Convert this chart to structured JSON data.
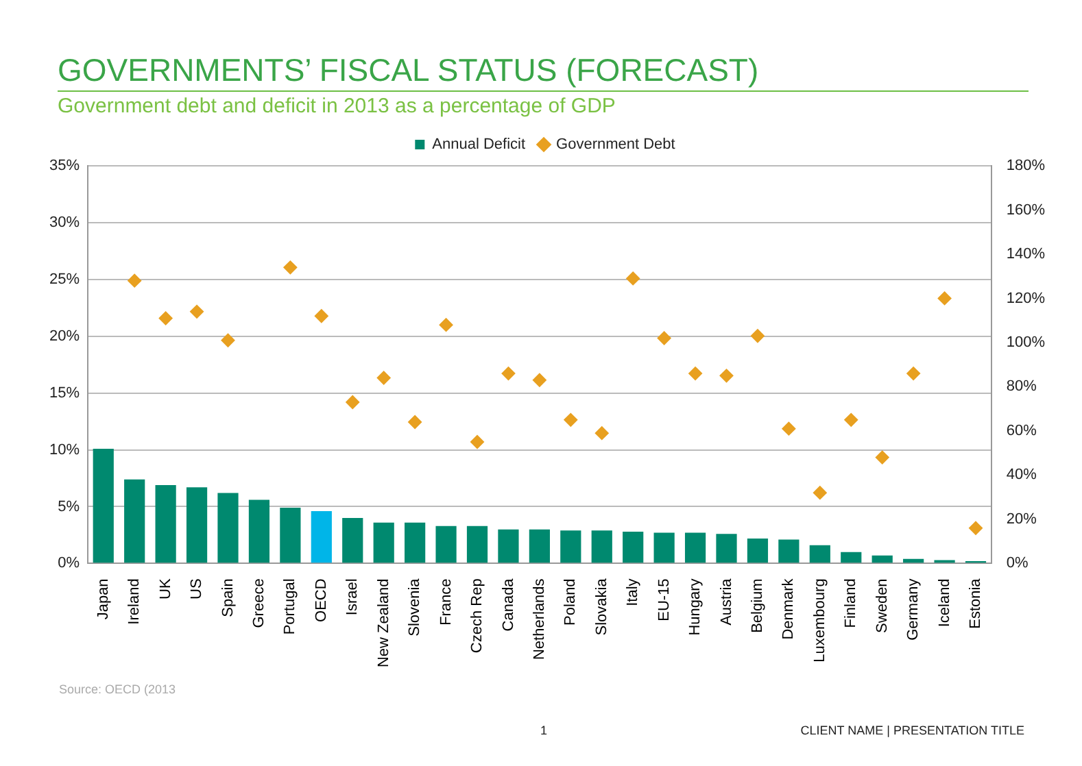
{
  "chart_data": {
    "type": "bar",
    "title": "GOVERNMENTS’ FISCAL STATUS (FORECAST)",
    "subtitle": "Government debt and deficit in 2013 as a percentage of GDP",
    "categories": [
      "Japan",
      "Ireland",
      "UK",
      "US",
      "Spain",
      "Greece",
      "Portugal",
      "OECD",
      "Israel",
      "New Zealand",
      "Slovenia",
      "France",
      "Czech Rep",
      "Canada",
      "Netherlands",
      "Poland",
      "Slovakia",
      "Italy",
      "EU-15",
      "Hungary",
      "Austria",
      "Belgium",
      "Denmark",
      "Luxembourg",
      "Finland",
      "Sweden",
      "Germany",
      "Iceland",
      "Estonia"
    ],
    "series": [
      {
        "name": "Annual Deficit",
        "color": "#00896f",
        "colors": [
          "#00896f",
          "#00896f",
          "#00896f",
          "#00896f",
          "#00896f",
          "#00896f",
          "#00896f",
          "#00b5e8",
          "#00896f",
          "#00896f",
          "#00896f",
          "#00896f",
          "#00896f",
          "#00896f",
          "#00896f",
          "#00896f",
          "#00896f",
          "#00896f",
          "#00896f",
          "#00896f",
          "#00896f",
          "#00896f",
          "#00896f",
          "#00896f",
          "#00896f",
          "#00896f",
          "#00896f",
          "#00896f",
          "#00896f"
        ],
        "values": [
          10.1,
          7.4,
          6.9,
          6.7,
          6.2,
          5.6,
          4.9,
          4.6,
          4.0,
          3.6,
          3.6,
          3.3,
          3.3,
          3.0,
          3.0,
          2.9,
          2.9,
          2.8,
          2.7,
          2.7,
          2.6,
          2.2,
          2.1,
          1.6,
          1.0,
          0.7,
          0.4,
          0.3,
          0.2
        ]
      },
      {
        "name": "Government Debt",
        "type": "scatter",
        "axis": "y2",
        "marker": "diamond",
        "color": "#e8a020",
        "values": [
          null,
          128,
          111,
          114,
          101,
          null,
          134,
          112,
          73,
          84,
          64,
          108,
          55,
          86,
          83,
          65,
          59,
          129,
          102,
          86,
          85,
          103,
          61,
          32,
          65,
          48,
          86,
          120,
          16
        ]
      }
    ],
    "ylim": [
      0,
      35
    ],
    "yticks": [
      {
        "value": 0,
        "label": "0%"
      },
      {
        "value": 5,
        "label": "5%"
      },
      {
        "value": 10,
        "label": "10%"
      },
      {
        "value": 15,
        "label": "15%"
      },
      {
        "value": 20,
        "label": "20%"
      },
      {
        "value": 25,
        "label": "25%"
      },
      {
        "value": 30,
        "label": "30%"
      },
      {
        "value": 35,
        "label": "35%"
      }
    ],
    "y2lim": [
      0,
      180
    ],
    "y2ticks": [
      {
        "value": 0,
        "label": "0%"
      },
      {
        "value": 20,
        "label": "20%"
      },
      {
        "value": 40,
        "label": "40%"
      },
      {
        "value": 60,
        "label": "60%"
      },
      {
        "value": 80,
        "label": "80%"
      },
      {
        "value": 100,
        "label": "100%"
      },
      {
        "value": 120,
        "label": "120%"
      },
      {
        "value": 140,
        "label": "140%"
      },
      {
        "value": 160,
        "label": "160%"
      },
      {
        "value": 180,
        "label": "180%"
      }
    ],
    "grid": "y",
    "legend": "top",
    "annotations": [
      "Source:     OECD (2013",
      "1",
      "CLIENT NAME  |  PRESENTATION TITLE"
    ]
  }
}
